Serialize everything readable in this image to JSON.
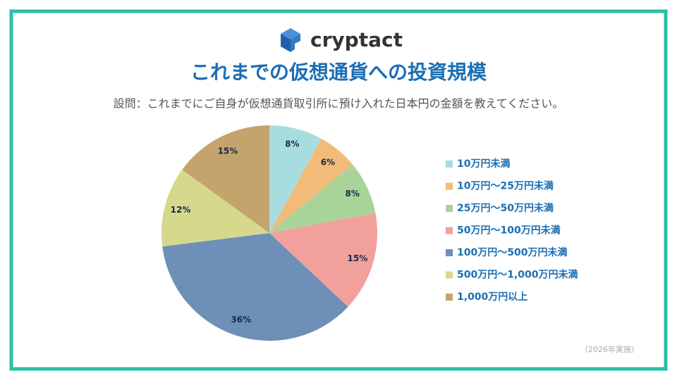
{
  "logo": "cryptact",
  "chart_data": {
    "type": "pie",
    "title": "これまでの仮想通貨への投資規模",
    "subtitle": "設問：これまでにご自身が仮想通貨取引所に預け入れた日本円の金額を教えてください。",
    "categories": [
      "10万円未満",
      "10万円～25万円未満",
      "25万円～50万円未満",
      "50万円～100万円未満",
      "100万円～500万円未満",
      "500万円～1,000万円未満",
      "1,000万円以上"
    ],
    "values": [
      8,
      6,
      8,
      15,
      36,
      12,
      15
    ],
    "value_labels": [
      "8%",
      "6%",
      "8%",
      "15%",
      "36%",
      "12%",
      "15%"
    ],
    "colors": [
      "#a8dde0",
      "#f2bb7a",
      "#a8d49a",
      "#f2a09c",
      "#6e8fb7",
      "#d6d98c",
      "#c4a46c"
    ],
    "legend": "right",
    "note": "（2026年実施）"
  }
}
